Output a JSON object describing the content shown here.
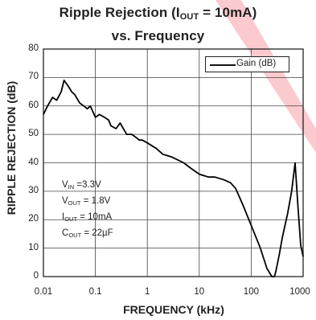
{
  "chart_data": {
    "type": "line",
    "title_line1": {
      "pre": "Ripple Rejection (I",
      "sub": "OUT",
      "post": " = 10mA)"
    },
    "title_line2": "vs. Frequency",
    "xlabel": "FREQUENCY (kHz)",
    "ylabel": "RIPPLE REJECTION (dB)",
    "x_scale": "log",
    "xlim": [
      0.01,
      1000
    ],
    "ylim": [
      0,
      80
    ],
    "x_ticks": [
      "0.01",
      "0.1",
      "1",
      "10",
      "100",
      "1000"
    ],
    "y_ticks": [
      "0",
      "10",
      "20",
      "30",
      "40",
      "50",
      "60",
      "70",
      "80"
    ],
    "grid": true,
    "legend_position": "top-right",
    "series": [
      {
        "name": "Gain (dB)",
        "color": "#000000",
        "x": [
          0.01,
          0.012,
          0.015,
          0.018,
          0.022,
          0.025,
          0.03,
          0.035,
          0.04,
          0.05,
          0.06,
          0.07,
          0.08,
          0.1,
          0.12,
          0.15,
          0.18,
          0.2,
          0.25,
          0.3,
          0.4,
          0.5,
          0.6,
          0.7,
          0.8,
          1,
          1.5,
          2,
          3,
          5,
          7,
          10,
          15,
          20,
          30,
          40,
          50,
          70,
          100,
          150,
          200,
          250,
          280,
          300,
          350,
          400,
          500,
          600,
          700,
          800,
          900,
          1000
        ],
        "y": [
          57,
          60,
          63,
          62,
          65,
          69,
          67,
          65,
          64,
          61,
          60,
          59,
          60,
          56,
          57,
          56,
          55,
          53,
          52,
          54,
          50,
          50,
          49,
          48,
          48,
          47,
          45,
          43,
          42,
          40,
          38,
          36,
          35,
          35,
          34,
          33,
          31,
          25,
          18,
          10,
          3,
          0,
          0,
          2,
          8,
          14,
          22,
          30,
          40,
          24,
          11,
          7
        ]
      }
    ],
    "annotation": [
      {
        "sym": "V",
        "sub": "IN",
        "rest": " =3.3V"
      },
      {
        "sym": "V",
        "sub": "OUT",
        "rest": " = 1.8V"
      },
      {
        "sym": "I",
        "sub": "OUT",
        "rest": " = 10mA"
      },
      {
        "sym": "C",
        "sub": "OUT",
        "rest": " = 22µF"
      }
    ],
    "watermark_color": "#f04050"
  }
}
